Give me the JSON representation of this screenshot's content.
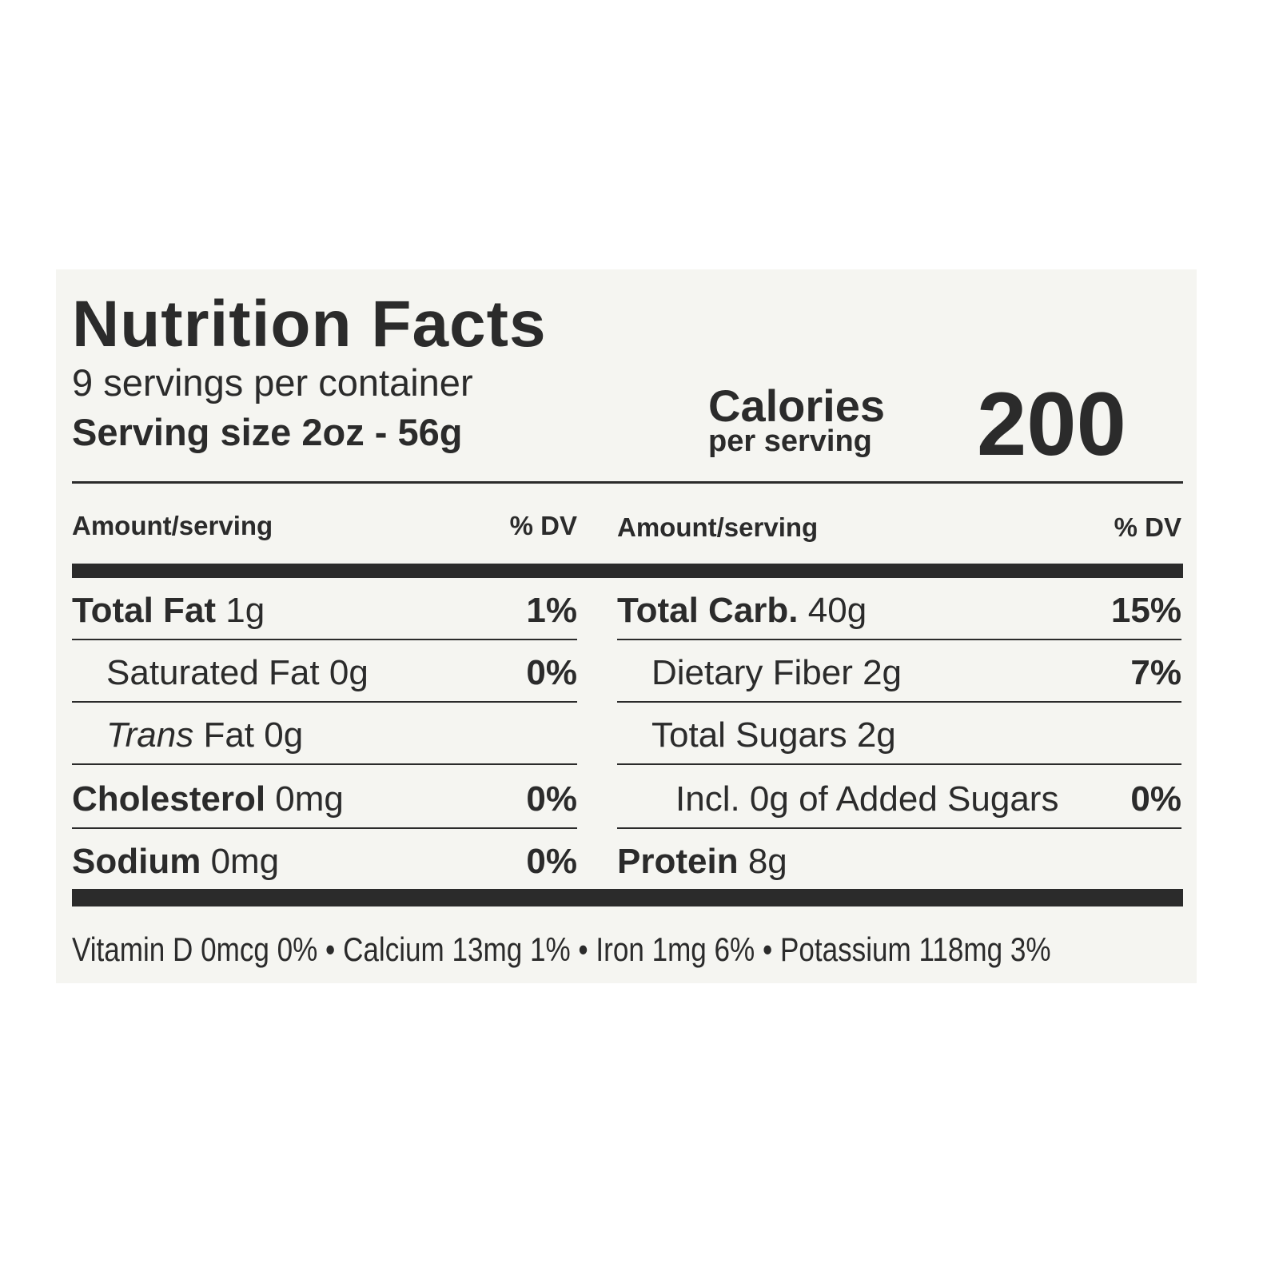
{
  "title": "Nutrition Facts",
  "servings": "9 servings per container",
  "serving_size": "Serving size 2oz - 56g",
  "calories": {
    "label": "Calories",
    "sublabel": "per serving",
    "value": 200
  },
  "column_header": {
    "amount": "Amount/serving",
    "dv": "% DV"
  },
  "left_rows": [
    {
      "name": "Total Fat",
      "amount": "1g",
      "dv": "1%",
      "style": "bold"
    },
    {
      "name": "Saturated Fat",
      "amount": "0g",
      "dv": "0%",
      "style": "indent"
    },
    {
      "name": "Trans",
      "amount": "Fat 0g",
      "style": "italic-indent"
    },
    {
      "name": "Cholesterol",
      "amount": "0mg",
      "dv": "0%",
      "style": "bold"
    },
    {
      "name": "Sodium",
      "amount": "0mg",
      "dv": "0%",
      "style": "bold"
    }
  ],
  "right_rows": [
    {
      "name": "Total Carb.",
      "amount": "40g",
      "dv": "15%",
      "style": "bold"
    },
    {
      "name": "Dietary Fiber",
      "amount": "2g",
      "dv": "7%",
      "style": "indent"
    },
    {
      "name": "Total Sugars",
      "amount": "2g",
      "style": "indent"
    },
    {
      "name": "Incl. 0g of Added Sugars",
      "dv": "0%",
      "style": "indent2"
    },
    {
      "name": "Protein",
      "amount": "8g",
      "style": "bold"
    }
  ],
  "footer": "Vitamin D 0mcg 0% • Calcium 13mg 1% • Iron 1mg 6% • Potassium 118mg 3%"
}
